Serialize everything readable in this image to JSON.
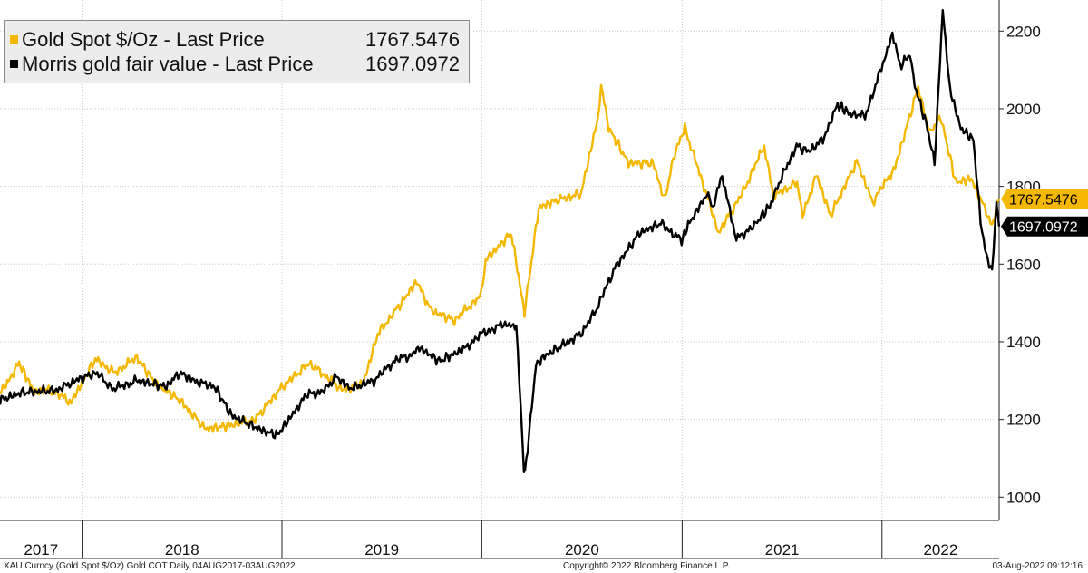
{
  "legend": {
    "items": [
      {
        "label": "Gold Spot $/Oz - Last Price",
        "value": "1767.5476",
        "color": "#f5b800"
      },
      {
        "label": "Morris gold fair value - Last Price",
        "value": "1697.0972",
        "color": "#000000"
      }
    ]
  },
  "footer": {
    "left": "XAU Curncy (Gold Spot  $/Oz) Gold COT  Daily 04AUG2017-03AUG2022",
    "center": "Copyright© 2022 Bloomberg Finance L.P.",
    "right": "03-Aug-2022 09:12:16"
  },
  "chart_data": {
    "type": "line",
    "x_range": [
      "2017-08-04",
      "2022-08-03"
    ],
    "ylim": [
      940,
      2280
    ],
    "y_ticks": [
      1000,
      1200,
      1400,
      1600,
      1800,
      2000,
      2200
    ],
    "y_axis_side": "right",
    "grid": true,
    "legend_placement": "top-left",
    "years": [
      "2017",
      "2018",
      "2019",
      "2020",
      "2021",
      "2022"
    ],
    "last_value_tags": [
      {
        "value": "1767.5476",
        "y": 1767.5,
        "color": "#f5b800"
      },
      {
        "value": "1697.0972",
        "y": 1697.1,
        "color": "#000000"
      }
    ],
    "series": [
      {
        "name": "Gold Spot $/Oz - Last Price",
        "color": "#f5b800",
        "points": [
          [
            "2017-08-04",
            1265
          ],
          [
            "2017-09-08",
            1345
          ],
          [
            "2017-10-06",
            1270
          ],
          [
            "2017-11-01",
            1278
          ],
          [
            "2017-12-12",
            1245
          ],
          [
            "2018-01-25",
            1355
          ],
          [
            "2018-03-01",
            1320
          ],
          [
            "2018-04-11",
            1360
          ],
          [
            "2018-05-15",
            1292
          ],
          [
            "2018-06-28",
            1250
          ],
          [
            "2018-08-15",
            1175
          ],
          [
            "2018-09-28",
            1185
          ],
          [
            "2018-11-13",
            1200
          ],
          [
            "2018-12-31",
            1282
          ],
          [
            "2019-02-20",
            1345
          ],
          [
            "2019-04-23",
            1275
          ],
          [
            "2019-05-30",
            1295
          ],
          [
            "2019-06-25",
            1420
          ],
          [
            "2019-08-07",
            1500
          ],
          [
            "2019-09-04",
            1555
          ],
          [
            "2019-10-01",
            1480
          ],
          [
            "2019-11-12",
            1455
          ],
          [
            "2019-12-31",
            1520
          ],
          [
            "2020-01-08",
            1610
          ],
          [
            "2020-02-24",
            1680
          ],
          [
            "2020-03-19",
            1475
          ],
          [
            "2020-04-14",
            1745
          ],
          [
            "2020-05-18",
            1765
          ],
          [
            "2020-06-30",
            1780
          ],
          [
            "2020-07-31",
            1975
          ],
          [
            "2020-08-06",
            2065
          ],
          [
            "2020-08-20",
            1950
          ],
          [
            "2020-09-25",
            1860
          ],
          [
            "2020-11-09",
            1860
          ],
          [
            "2020-11-30",
            1765
          ],
          [
            "2020-12-18",
            1885
          ],
          [
            "2021-01-06",
            1950
          ],
          [
            "2021-02-26",
            1730
          ],
          [
            "2021-03-08",
            1680
          ],
          [
            "2021-04-20",
            1780
          ],
          [
            "2021-05-31",
            1905
          ],
          [
            "2021-06-17",
            1775
          ],
          [
            "2021-07-30",
            1810
          ],
          [
            "2021-08-09",
            1725
          ],
          [
            "2021-09-03",
            1830
          ],
          [
            "2021-09-29",
            1725
          ],
          [
            "2021-11-16",
            1865
          ],
          [
            "2021-12-15",
            1760
          ],
          [
            "2022-01-25",
            1850
          ],
          [
            "2022-03-08",
            2055
          ],
          [
            "2022-03-30",
            1935
          ],
          [
            "2022-04-18",
            1980
          ],
          [
            "2022-05-16",
            1810
          ],
          [
            "2022-06-13",
            1820
          ],
          [
            "2022-07-21",
            1700
          ],
          [
            "2022-08-03",
            1767.5
          ]
        ]
      },
      {
        "name": "Morris gold fair value - Last Price",
        "color": "#000000",
        "points": [
          [
            "2017-08-04",
            1250
          ],
          [
            "2017-09-15",
            1270
          ],
          [
            "2017-11-15",
            1275
          ],
          [
            "2017-12-20",
            1300
          ],
          [
            "2018-01-26",
            1320
          ],
          [
            "2018-02-28",
            1278
          ],
          [
            "2018-04-10",
            1300
          ],
          [
            "2018-06-04",
            1285
          ],
          [
            "2018-06-28",
            1320
          ],
          [
            "2018-08-01",
            1295
          ],
          [
            "2018-08-31",
            1285
          ],
          [
            "2018-10-01",
            1210
          ],
          [
            "2018-11-28",
            1170
          ],
          [
            "2018-12-24",
            1160
          ],
          [
            "2019-01-29",
            1230
          ],
          [
            "2019-02-20",
            1270
          ],
          [
            "2019-03-11",
            1265
          ],
          [
            "2019-04-10",
            1310
          ],
          [
            "2019-05-06",
            1280
          ],
          [
            "2019-06-18",
            1300
          ],
          [
            "2019-07-29",
            1355
          ],
          [
            "2019-08-20",
            1360
          ],
          [
            "2019-09-09",
            1385
          ],
          [
            "2019-10-15",
            1350
          ],
          [
            "2019-11-28",
            1380
          ],
          [
            "2019-12-31",
            1420
          ],
          [
            "2020-02-10",
            1445
          ],
          [
            "2020-03-04",
            1440
          ],
          [
            "2020-03-18",
            1075
          ],
          [
            "2020-03-20",
            1060
          ],
          [
            "2020-04-09",
            1340
          ],
          [
            "2020-04-22",
            1360
          ],
          [
            "2020-05-26",
            1390
          ],
          [
            "2020-06-30",
            1420
          ],
          [
            "2020-07-27",
            1480
          ],
          [
            "2020-08-31",
            1590
          ],
          [
            "2020-10-15",
            1680
          ],
          [
            "2020-11-23",
            1705
          ],
          [
            "2020-12-31",
            1660
          ],
          [
            "2021-01-12",
            1700
          ],
          [
            "2021-02-15",
            1780
          ],
          [
            "2021-02-26",
            1745
          ],
          [
            "2021-03-15",
            1830
          ],
          [
            "2021-04-01",
            1720
          ],
          [
            "2021-04-10",
            1665
          ],
          [
            "2021-05-13",
            1700
          ],
          [
            "2021-06-10",
            1750
          ],
          [
            "2021-06-24",
            1800
          ],
          [
            "2021-07-29",
            1905
          ],
          [
            "2021-08-19",
            1890
          ],
          [
            "2021-09-15",
            1920
          ],
          [
            "2021-10-12",
            2010
          ],
          [
            "2021-11-01",
            1990
          ],
          [
            "2021-12-01",
            1980
          ],
          [
            "2022-01-11",
            2150
          ],
          [
            "2022-01-20",
            2195
          ],
          [
            "2022-02-03",
            2110
          ],
          [
            "2022-02-21",
            2140
          ],
          [
            "2022-03-02",
            2060
          ],
          [
            "2022-03-25",
            1950
          ],
          [
            "2022-04-07",
            1860
          ],
          [
            "2022-04-22",
            2255
          ],
          [
            "2022-05-05",
            2050
          ],
          [
            "2022-05-25",
            1950
          ],
          [
            "2022-06-17",
            1920
          ],
          [
            "2022-06-30",
            1710
          ],
          [
            "2022-07-11",
            1620
          ],
          [
            "2022-07-21",
            1580
          ],
          [
            "2022-07-29",
            1760
          ],
          [
            "2022-08-03",
            1697.1
          ]
        ]
      }
    ]
  }
}
